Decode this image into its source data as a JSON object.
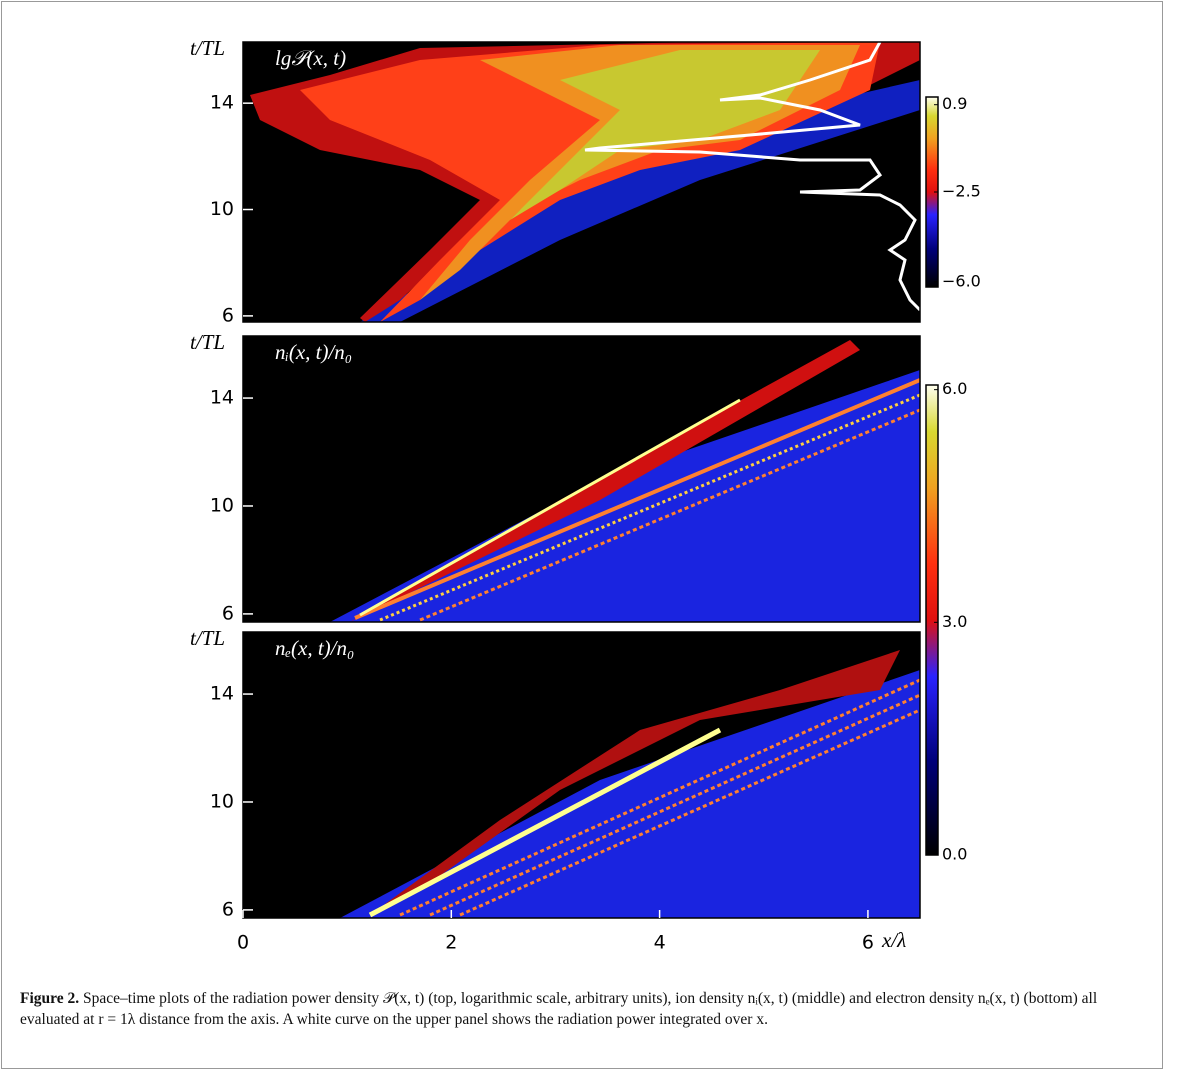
{
  "chart_data": [
    {
      "type": "heatmap",
      "title": "lg𝒫(x, t)",
      "ylabel": "t/TL",
      "ylim": [
        5.77,
        16.3
      ],
      "yticks": [
        6,
        10,
        14
      ],
      "xlim": [
        0,
        6.5
      ],
      "colorbar": {
        "clim": [
          -6.2,
          1.2
        ],
        "ticks": [
          0.9,
          {
            "value": -2.5,
            "label": "−2.5"
          },
          {
            "value": -6.0,
            "label": "−6.0"
          }
        ]
      }
    },
    {
      "type": "heatmap",
      "title": "nᵢ(x, t)/n₀",
      "ylabel": "t/TL",
      "ylim": [
        5.7,
        16.3
      ],
      "yticks": [
        6,
        10,
        14
      ],
      "xlim": [
        0,
        6.5
      ],
      "colorbar": {
        "clim": [
          0,
          6.06
        ],
        "ticks": [
          {
            "value": 6,
            "label": "6.0"
          },
          {
            "value": 3,
            "label": "3.0"
          },
          {
            "value": 0,
            "label": "0.0"
          }
        ]
      }
    },
    {
      "type": "heatmap",
      "title": "nₑ(x, t)/n₀",
      "ylabel": "t/TL",
      "ylim": [
        5.7,
        16.3
      ],
      "yticks": [
        6,
        10,
        14
      ],
      "xlim": [
        0,
        6.5
      ],
      "xlabel": "x/λ",
      "xticks": [
        0,
        2,
        4,
        6
      ]
    }
  ],
  "caption": {
    "label": "Figure 2.",
    "text": "Space–time plots of the radiation power density 𝒫(x, t) (top, logarithmic scale, arbitrary units), ion density nᵢ(x, t) (middle) and electron density nₑ(x, t) (bottom) all evaluated at r = 1λ distance from the axis. A white curve on the upper panel shows the radiation power integrated over x."
  }
}
